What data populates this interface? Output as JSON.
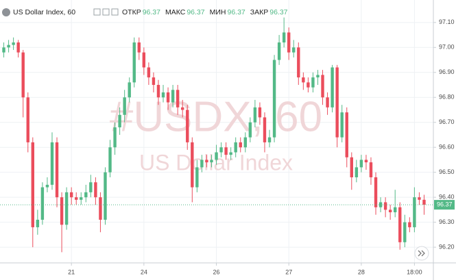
{
  "chart_data": {
    "type": "candlestick",
    "title": "US Dollar Index, 60",
    "header": [
      {
        "label": "ОТКР",
        "value": 96.37
      },
      {
        "label": "МАКС",
        "value": 96.37
      },
      {
        "label": "МИН",
        "value": 96.37
      },
      {
        "label": "ЗАКР",
        "value": 96.37
      }
    ],
    "watermark": [
      "#USDX, 60",
      "US Dollar Index"
    ],
    "up_color": "#53b987",
    "down_color": "#eb4d5c",
    "grid": true,
    "last_price": 96.37,
    "categories": [
      null,
      null,
      null,
      null,
      null,
      null,
      null,
      null,
      null,
      null,
      null,
      null,
      null,
      null,
      "21",
      null,
      null,
      null,
      null,
      null,
      null,
      null,
      null,
      null,
      null,
      null,
      null,
      null,
      null,
      "24",
      null,
      null,
      null,
      null,
      null,
      null,
      null,
      null,
      null,
      null,
      null,
      null,
      null,
      null,
      "26",
      null,
      null,
      null,
      null,
      null,
      null,
      null,
      null,
      null,
      null,
      null,
      null,
      null,
      null,
      "27",
      null,
      null,
      null,
      null,
      null,
      null,
      null,
      null,
      null,
      null,
      null,
      null,
      null,
      null,
      "28",
      null,
      null,
      null,
      null,
      null,
      null,
      null,
      null,
      null,
      null,
      "18:00",
      null,
      null
    ],
    "open": [
      96.98,
      97.0,
      97.01,
      97.02,
      96.98,
      96.8,
      96.62,
      96.28,
      96.31,
      96.44,
      96.45,
      96.62,
      96.4,
      96.29,
      96.42,
      96.4,
      96.39,
      96.4,
      96.42,
      96.46,
      96.4,
      96.31,
      96.5,
      96.6,
      96.68,
      96.73,
      96.8,
      96.86,
      97.02,
      96.98,
      96.92,
      96.88,
      96.85,
      96.8,
      96.82,
      96.78,
      96.83,
      96.76,
      96.75,
      96.62,
      96.44,
      96.52,
      96.55,
      96.54,
      96.55,
      96.58,
      96.6,
      96.57,
      96.58,
      96.62,
      96.6,
      96.64,
      96.7,
      96.76,
      96.72,
      96.62,
      96.64,
      96.95,
      97.02,
      97.06,
      96.98,
      97.0,
      96.88,
      96.86,
      96.84,
      96.88,
      96.89,
      96.8,
      96.76,
      96.92,
      96.64,
      96.74,
      96.56,
      96.48,
      96.52,
      96.55,
      96.54,
      96.48,
      96.36,
      96.38,
      96.35,
      96.34,
      96.36,
      96.22,
      96.3,
      96.28,
      96.4,
      96.39
    ],
    "high": [
      97.02,
      97.03,
      97.04,
      97.03,
      96.99,
      96.82,
      96.64,
      96.35,
      96.46,
      96.48,
      96.66,
      96.64,
      96.42,
      96.44,
      96.44,
      96.42,
      96.42,
      96.45,
      96.49,
      96.48,
      96.42,
      96.52,
      96.63,
      96.7,
      96.76,
      96.83,
      96.88,
      97.04,
      97.04,
      97.0,
      96.94,
      96.9,
      96.87,
      96.85,
      96.84,
      96.85,
      96.85,
      96.79,
      96.77,
      96.64,
      96.55,
      96.57,
      96.57,
      96.57,
      96.61,
      96.62,
      96.62,
      96.6,
      96.64,
      96.64,
      96.66,
      96.72,
      96.79,
      96.78,
      96.74,
      96.67,
      96.97,
      97.05,
      97.12,
      97.08,
      97.03,
      97.02,
      96.9,
      96.88,
      96.9,
      96.91,
      96.91,
      96.82,
      96.93,
      96.93,
      96.77,
      96.76,
      96.58,
      96.55,
      96.57,
      96.57,
      96.56,
      96.5,
      96.4,
      96.4,
      96.37,
      96.43,
      96.38,
      96.33,
      96.32,
      96.44,
      96.42,
      96.41
    ],
    "low": [
      96.96,
      96.98,
      96.99,
      96.96,
      96.72,
      96.58,
      96.2,
      96.25,
      96.29,
      96.42,
      96.43,
      96.36,
      96.18,
      96.27,
      96.37,
      96.37,
      96.37,
      96.38,
      96.4,
      96.37,
      96.26,
      96.29,
      96.48,
      96.57,
      96.65,
      96.7,
      96.78,
      96.84,
      96.95,
      96.89,
      96.85,
      96.82,
      96.77,
      96.78,
      96.75,
      96.76,
      96.73,
      96.72,
      96.59,
      96.38,
      96.42,
      96.5,
      96.52,
      96.52,
      96.53,
      96.56,
      96.55,
      96.55,
      96.56,
      96.58,
      96.58,
      96.62,
      96.68,
      96.69,
      96.58,
      96.6,
      96.62,
      96.93,
      97.0,
      96.95,
      96.96,
      96.85,
      96.83,
      96.82,
      96.82,
      96.85,
      96.77,
      96.73,
      96.74,
      96.6,
      96.62,
      96.52,
      96.43,
      96.46,
      96.5,
      96.51,
      96.45,
      96.33,
      96.34,
      96.32,
      96.31,
      96.32,
      96.19,
      96.2,
      96.26,
      96.26,
      96.37,
      96.33
    ],
    "close": [
      97.0,
      97.01,
      97.02,
      96.98,
      96.8,
      96.62,
      96.28,
      96.31,
      96.44,
      96.45,
      96.62,
      96.4,
      96.29,
      96.42,
      96.4,
      96.39,
      96.4,
      96.42,
      96.46,
      96.4,
      96.31,
      96.5,
      96.6,
      96.68,
      96.73,
      96.8,
      96.86,
      97.02,
      96.98,
      96.92,
      96.88,
      96.85,
      96.8,
      96.82,
      96.78,
      96.83,
      96.76,
      96.75,
      96.62,
      96.44,
      96.52,
      96.55,
      96.54,
      96.55,
      96.58,
      96.6,
      96.57,
      96.58,
      96.62,
      96.6,
      96.64,
      96.7,
      96.76,
      96.72,
      96.62,
      96.64,
      96.95,
      97.02,
      97.06,
      96.98,
      97.0,
      96.88,
      96.86,
      96.84,
      96.88,
      96.89,
      96.8,
      96.76,
      96.92,
      96.64,
      96.74,
      96.56,
      96.48,
      96.52,
      96.55,
      96.54,
      96.48,
      96.36,
      96.38,
      96.35,
      96.34,
      96.36,
      96.22,
      96.3,
      96.28,
      96.4,
      96.39,
      96.37
    ],
    "ylim": [
      96.14,
      97.19
    ],
    "yticks": [
      {
        "value": 96.2,
        "label": "96.20"
      },
      {
        "value": 96.3,
        "label": "96.30"
      },
      {
        "value": 96.4,
        "label": "96.40"
      },
      {
        "value": 96.5,
        "label": "96.50"
      },
      {
        "value": 96.6,
        "label": "96.60"
      },
      {
        "value": 96.7,
        "label": "96.70"
      },
      {
        "value": 96.8,
        "label": "96.80"
      },
      {
        "value": 96.9,
        "label": "96.90"
      },
      {
        "value": 97.0,
        "label": "97.00"
      },
      {
        "value": 97.1,
        "label": "97.10"
      }
    ]
  }
}
